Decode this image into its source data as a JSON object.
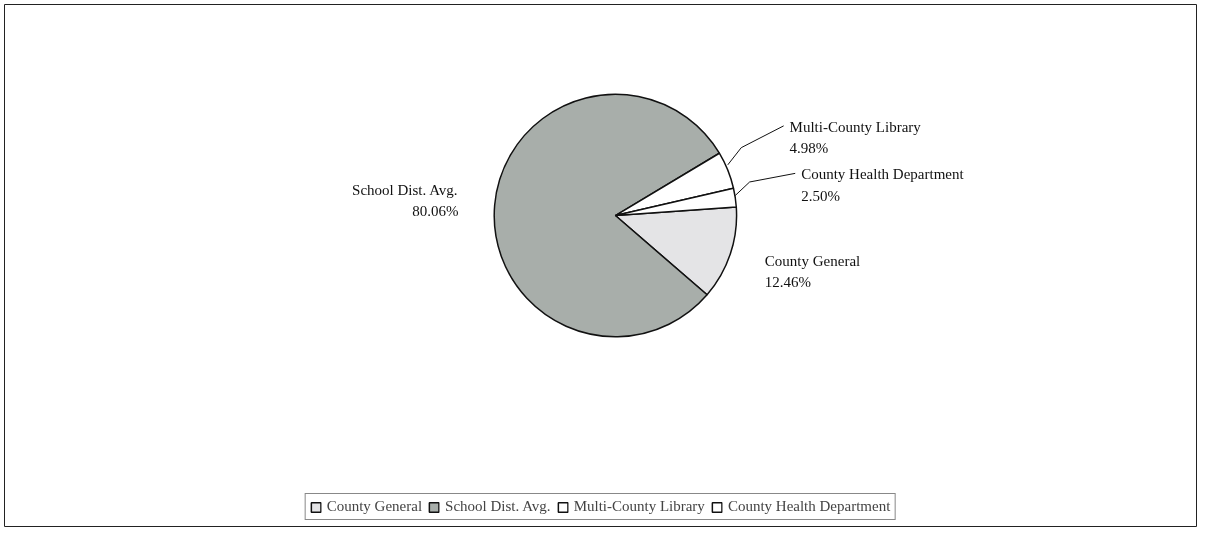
{
  "chart_data": {
    "type": "pie",
    "categories": [
      "County General",
      "School Dist. Avg.",
      "Multi-County Library",
      "County Health Department"
    ],
    "values": [
      12.46,
      80.06,
      4.98,
      2.5
    ],
    "value_labels": [
      "12.46%",
      "80.06%",
      "4.98%",
      "2.50%"
    ],
    "colors": [
      "#e4e4e6",
      "#a8aeaa",
      "#ffffff",
      "#ffffff"
    ],
    "legend": "bottom"
  }
}
